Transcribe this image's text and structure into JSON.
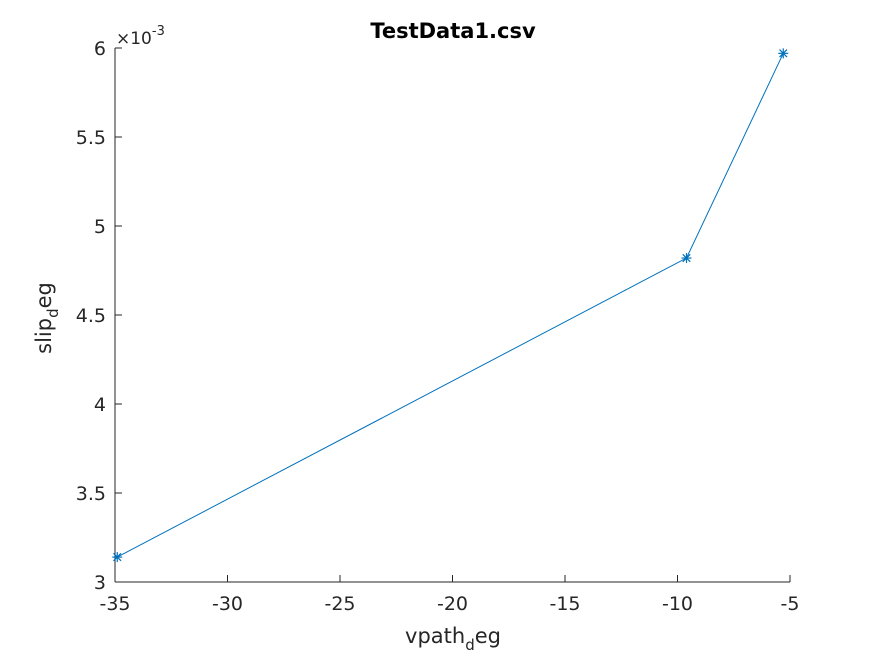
{
  "chart_data": {
    "type": "line",
    "title": "TestData1.csv",
    "xlabel": {
      "base": "vpath",
      "sub": "d",
      "rest": "eg"
    },
    "ylabel": {
      "base": "slip",
      "sub": "d",
      "rest": "eg"
    },
    "xlim": [
      -35,
      -5
    ],
    "ylim": [
      3,
      6
    ],
    "y_multiplier": {
      "base": "×10",
      "exponent": "-3"
    },
    "x_ticks": [
      -35,
      -30,
      -25,
      -20,
      -15,
      -10,
      -5
    ],
    "y_ticks": [
      3,
      3.5,
      4,
      4.5,
      5,
      5.5,
      6
    ],
    "grid": false,
    "series": [
      {
        "marker": "asterisk",
        "color": "#0072BD",
        "x": [
          -34.9,
          -9.6,
          -5.3
        ],
        "y": [
          3.14,
          4.82,
          5.97
        ]
      }
    ]
  }
}
